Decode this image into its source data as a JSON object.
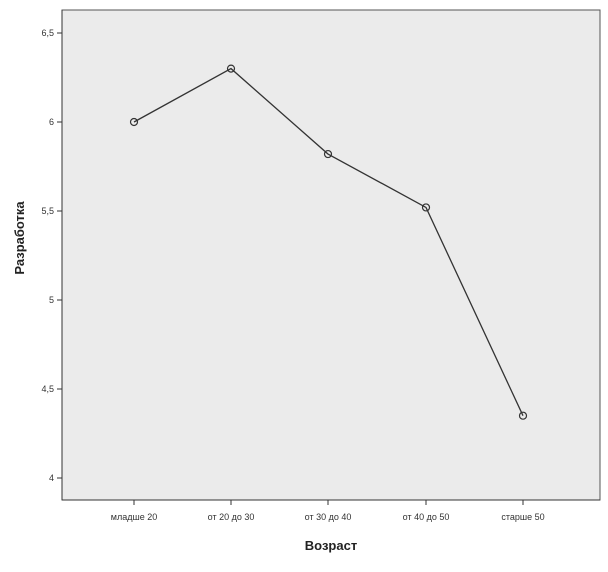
{
  "chart_data": {
    "type": "line",
    "title": "",
    "xlabel": "Возраст",
    "ylabel": "Разработка",
    "categories": [
      "младше 20",
      "от 20 до 30",
      "от 30 до 40",
      "от 40 до 50",
      "старше 50"
    ],
    "series": [
      {
        "values": [
          6.0,
          6.3,
          5.82,
          5.52,
          4.35
        ]
      }
    ],
    "ylim": [
      4.0,
      6.5
    ],
    "yticks": [
      4,
      4.5,
      5,
      5.5,
      6,
      6.5
    ],
    "ytick_labels": [
      "4",
      "4,5",
      "5",
      "5,5",
      "6",
      "6,5"
    ],
    "grid": false,
    "legend": "none",
    "colors": {
      "plot_background": "#ebebeb",
      "line": "#333333",
      "axis": "#333333"
    }
  }
}
